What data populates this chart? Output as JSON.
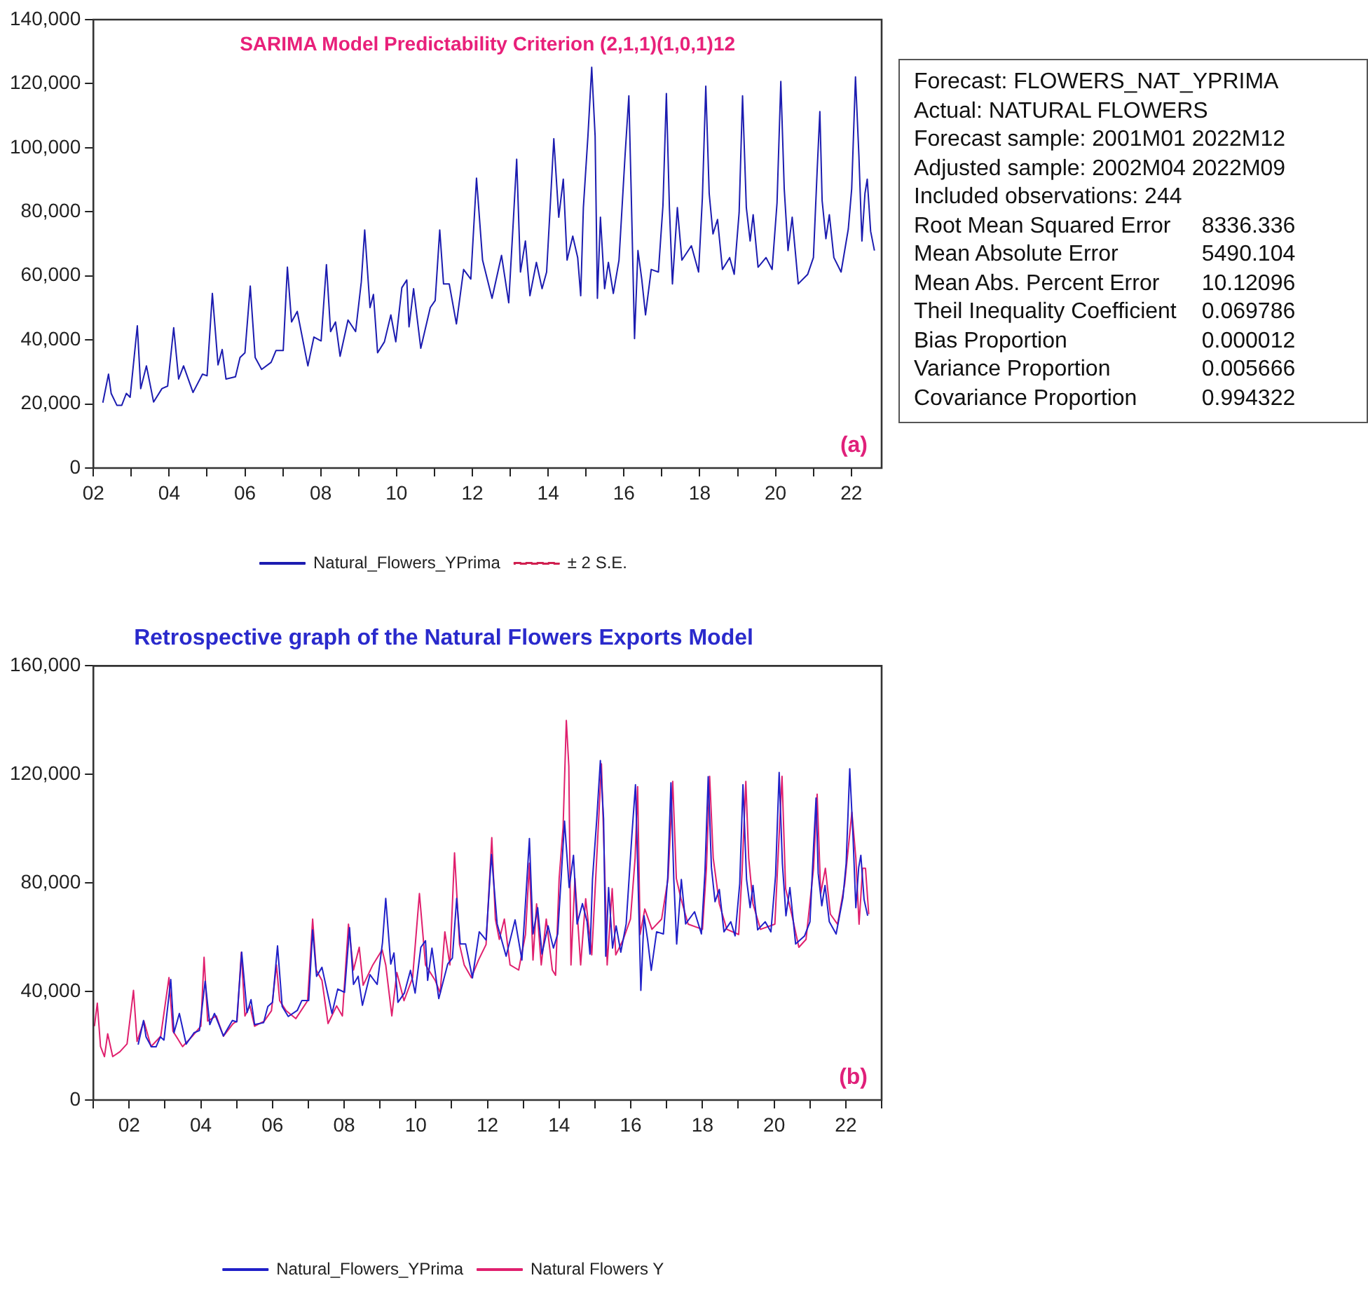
{
  "chart_data": [
    {
      "type": "line",
      "title": "SARIMA Model Predictability Criterion (2,1,1)(1,0,1)12",
      "annotations": [
        "(a)"
      ],
      "xlim": [
        2002,
        2022.8
      ],
      "xticks": [
        {
          "value": 2002,
          "label": "02"
        },
        {
          "value": 2003,
          "label": null
        },
        {
          "value": 2004,
          "label": "04"
        },
        {
          "value": 2005,
          "label": null
        },
        {
          "value": 2006,
          "label": "06"
        },
        {
          "value": 2007,
          "label": null
        },
        {
          "value": 2008,
          "label": "08"
        },
        {
          "value": 2009,
          "label": null
        },
        {
          "value": 2010,
          "label": "10"
        },
        {
          "value": 2011,
          "label": null
        },
        {
          "value": 2012,
          "label": "12"
        },
        {
          "value": 2013,
          "label": null
        },
        {
          "value": 2014,
          "label": "14"
        },
        {
          "value": 2015,
          "label": null
        },
        {
          "value": 2016,
          "label": "16"
        },
        {
          "value": 2017,
          "label": null
        },
        {
          "value": 2018,
          "label": "18"
        },
        {
          "value": 2019,
          "label": null
        },
        {
          "value": 2020,
          "label": "20"
        },
        {
          "value": 2021,
          "label": null
        },
        {
          "value": 2022,
          "label": "22"
        }
      ],
      "ylim": [
        0,
        140000
      ],
      "yticks": [
        {
          "value": 0,
          "label": "0"
        },
        {
          "value": 20000,
          "label": "20,000"
        },
        {
          "value": 40000,
          "label": "40,000"
        },
        {
          "value": 60000,
          "label": "60,000"
        },
        {
          "value": 80000,
          "label": "80,000"
        },
        {
          "value": 100000,
          "label": "100,000"
        },
        {
          "value": 120000,
          "label": "120,000"
        },
        {
          "value": 140000,
          "label": "140,000"
        }
      ],
      "legend": "bottom",
      "series": [
        {
          "name": "Natural_Flowers_YPrima",
          "color": "#1c1cb0",
          "x": [
            2002.25,
            2002.4,
            2002.47,
            2002.62,
            2002.75,
            2002.87,
            2002.97,
            2003.16,
            2003.25,
            2003.4,
            2003.59,
            2003.81,
            2003.96,
            2004.12,
            2004.25,
            2004.38,
            2004.63,
            2004.88,
            2005.0,
            2005.14,
            2005.29,
            2005.4,
            2005.5,
            2005.75,
            2005.87,
            2006.0,
            2006.14,
            2006.27,
            2006.44,
            2006.69,
            2006.82,
            2007.01,
            2007.12,
            2007.23,
            2007.38,
            2007.66,
            2007.82,
            2008.01,
            2008.15,
            2008.26,
            2008.39,
            2008.51,
            2008.72,
            2008.92,
            2009.07,
            2009.16,
            2009.3,
            2009.39,
            2009.5,
            2009.68,
            2009.85,
            2009.98,
            2010.14,
            2010.27,
            2010.33,
            2010.45,
            2010.64,
            2010.89,
            2011.02,
            2011.14,
            2011.24,
            2011.39,
            2011.58,
            2011.77,
            2011.96,
            2012.11,
            2012.27,
            2012.52,
            2012.77,
            2012.96,
            2013.08,
            2013.17,
            2013.27,
            2013.4,
            2013.52,
            2013.69,
            2013.84,
            2013.96,
            2014.06,
            2014.15,
            2014.28,
            2014.4,
            2014.5,
            2014.65,
            2014.78,
            2014.86,
            2014.93,
            2015.05,
            2015.15,
            2015.24,
            2015.3,
            2015.38,
            2015.49,
            2015.59,
            2015.72,
            2015.87,
            2016.03,
            2016.13,
            2016.19,
            2016.28,
            2016.37,
            2016.47,
            2016.57,
            2016.72,
            2016.91,
            2017.03,
            2017.12,
            2017.2,
            2017.28,
            2017.41,
            2017.53,
            2017.78,
            2017.97,
            2018.07,
            2018.16,
            2018.25,
            2018.35,
            2018.47,
            2018.6,
            2018.79,
            2018.91,
            2019.04,
            2019.13,
            2019.23,
            2019.33,
            2019.41,
            2019.54,
            2019.75,
            2019.91,
            2020.04,
            2020.14,
            2020.23,
            2020.33,
            2020.44,
            2020.6,
            2020.85,
            2021.0,
            2021.1,
            2021.17,
            2021.23,
            2021.33,
            2021.42,
            2021.54,
            2021.73,
            2021.92,
            2022.01,
            2022.11,
            2022.2,
            2022.28,
            2022.36,
            2022.42,
            2022.51,
            2022.61
          ],
          "values": [
            20400,
            29300,
            23300,
            19600,
            19600,
            23300,
            22100,
            44400,
            24800,
            31900,
            20600,
            24800,
            25600,
            43800,
            27800,
            31900,
            23600,
            29300,
            28800,
            54500,
            32200,
            37000,
            27800,
            28500,
            34500,
            36000,
            56800,
            34500,
            30800,
            33000,
            36700,
            36700,
            62700,
            45600,
            48900,
            31900,
            40900,
            39700,
            63500,
            42600,
            45600,
            34900,
            46200,
            42600,
            58100,
            74300,
            50100,
            54200,
            36000,
            39400,
            47800,
            39400,
            56300,
            58700,
            44100,
            56000,
            37400,
            50100,
            52300,
            74300,
            57500,
            57500,
            45000,
            62000,
            59000,
            90500,
            64900,
            53000,
            66400,
            51600,
            76800,
            96400,
            61200,
            70900,
            53800,
            64200,
            56000,
            61200,
            82800,
            102800,
            78300,
            90200,
            64900,
            72400,
            65700,
            53800,
            81300,
            103600,
            125100,
            103600,
            53000,
            78300,
            56000,
            64200,
            54500,
            64900,
            97600,
            116200,
            87200,
            40400,
            67900,
            59000,
            47800,
            62000,
            61200,
            82000,
            116900,
            81300,
            57500,
            81300,
            64900,
            69400,
            61200,
            84300,
            119200,
            85700,
            73100,
            77600,
            62000,
            65700,
            60500,
            79800,
            116200,
            81300,
            70900,
            79100,
            62700,
            65700,
            62000,
            82800,
            120700,
            87200,
            67900,
            78300,
            57500,
            60500,
            65700,
            93200,
            111300,
            83500,
            71600,
            79100,
            65700,
            61200,
            74600,
            87200,
            122100,
            97600,
            70900,
            85700,
            90200,
            73900,
            67900
          ]
        },
        {
          "name": "± 2 S.E.",
          "color": "#d02050",
          "line_style": "dashed"
        }
      ]
    },
    {
      "type": "other",
      "annotations": [
        "Forecast: FLOWERS_NAT_YPRIMA",
        "Actual: NATURAL FLOWERS",
        "Forecast sample: 2001M01 2022M12",
        "Adjusted sample: 2002M04 2022M09",
        "Included observations: 244"
      ],
      "categories": [
        "Root Mean Squared Error",
        "Mean Absolute Error",
        "Mean Abs. Percent Error",
        "Theil Inequality Coefficient",
        "Bias Proportion",
        "Variance Proportion",
        "Covariance Proportion"
      ],
      "values": [
        8336.336,
        5490.104,
        10.12096,
        0.069786,
        1.2e-05,
        0.005666,
        0.994322
      ],
      "value_labels": [
        "8336.336",
        "5490.104",
        "10.12096",
        "0.069786",
        "0.000012",
        "0.005666",
        "0.994322"
      ]
    },
    {
      "type": "line",
      "title": "Retrospective graph of the Natural Flowers Exports Model",
      "annotations": [
        "(b)"
      ],
      "xlim": [
        2001,
        2023
      ],
      "xticks": [
        {
          "value": 2001,
          "label": null
        },
        {
          "value": 2002,
          "label": "02"
        },
        {
          "value": 2003,
          "label": null
        },
        {
          "value": 2004,
          "label": "04"
        },
        {
          "value": 2005,
          "label": null
        },
        {
          "value": 2006,
          "label": "06"
        },
        {
          "value": 2007,
          "label": null
        },
        {
          "value": 2008,
          "label": "08"
        },
        {
          "value": 2009,
          "label": null
        },
        {
          "value": 2010,
          "label": "10"
        },
        {
          "value": 2011,
          "label": null
        },
        {
          "value": 2012,
          "label": "12"
        },
        {
          "value": 2013,
          "label": null
        },
        {
          "value": 2014,
          "label": "14"
        },
        {
          "value": 2015,
          "label": null
        },
        {
          "value": 2016,
          "label": "16"
        },
        {
          "value": 2017,
          "label": null
        },
        {
          "value": 2018,
          "label": "18"
        },
        {
          "value": 2019,
          "label": null
        },
        {
          "value": 2020,
          "label": "20"
        },
        {
          "value": 2021,
          "label": null
        },
        {
          "value": 2022,
          "label": "22"
        },
        {
          "value": 2023,
          "label": null
        }
      ],
      "ylim": [
        0,
        160000
      ],
      "yticks": [
        {
          "value": 0,
          "label": "0"
        },
        {
          "value": 40000,
          "label": "40,000"
        },
        {
          "value": 80000,
          "label": "80,000"
        },
        {
          "value": 120000,
          "label": "120,000"
        },
        {
          "value": 160000,
          "label": "160,000"
        }
      ],
      "legend": "bottom",
      "series": [
        {
          "name": "Natural_Flowers_YPrima",
          "color": "#2020c8",
          "x": [
            2002.25,
            2002.4,
            2002.47,
            2002.62,
            2002.75,
            2002.87,
            2002.97,
            2003.16,
            2003.25,
            2003.4,
            2003.59,
            2003.81,
            2003.96,
            2004.12,
            2004.25,
            2004.38,
            2004.63,
            2004.88,
            2005.0,
            2005.14,
            2005.29,
            2005.4,
            2005.5,
            2005.75,
            2005.87,
            2006.0,
            2006.14,
            2006.27,
            2006.44,
            2006.69,
            2006.82,
            2007.01,
            2007.12,
            2007.23,
            2007.38,
            2007.66,
            2007.82,
            2008.01,
            2008.15,
            2008.26,
            2008.39,
            2008.51,
            2008.72,
            2008.92,
            2009.07,
            2009.16,
            2009.3,
            2009.39,
            2009.5,
            2009.68,
            2009.85,
            2009.98,
            2010.14,
            2010.27,
            2010.33,
            2010.45,
            2010.64,
            2010.89,
            2011.02,
            2011.14,
            2011.24,
            2011.39,
            2011.58,
            2011.77,
            2011.96,
            2012.11,
            2012.27,
            2012.52,
            2012.77,
            2012.96,
            2013.08,
            2013.17,
            2013.27,
            2013.4,
            2013.52,
            2013.69,
            2013.84,
            2013.96,
            2014.06,
            2014.15,
            2014.28,
            2014.4,
            2014.5,
            2014.65,
            2014.78,
            2014.86,
            2014.93,
            2015.05,
            2015.15,
            2015.24,
            2015.3,
            2015.38,
            2015.49,
            2015.59,
            2015.72,
            2015.87,
            2016.03,
            2016.13,
            2016.19,
            2016.28,
            2016.37,
            2016.47,
            2016.57,
            2016.72,
            2016.91,
            2017.03,
            2017.12,
            2017.2,
            2017.28,
            2017.41,
            2017.53,
            2017.78,
            2017.97,
            2018.07,
            2018.16,
            2018.25,
            2018.35,
            2018.47,
            2018.6,
            2018.79,
            2018.91,
            2019.04,
            2019.13,
            2019.23,
            2019.33,
            2019.41,
            2019.54,
            2019.75,
            2019.91,
            2020.04,
            2020.14,
            2020.23,
            2020.33,
            2020.44,
            2020.6,
            2020.85,
            2021.0,
            2021.1,
            2021.17,
            2021.23,
            2021.33,
            2021.42,
            2021.54,
            2021.73,
            2021.92,
            2022.01,
            2022.11,
            2022.2,
            2022.28,
            2022.36,
            2022.42,
            2022.51,
            2022.61
          ],
          "values": [
            20400,
            29300,
            23300,
            19600,
            19600,
            23300,
            22100,
            44400,
            24800,
            31900,
            20600,
            24800,
            25600,
            43800,
            27800,
            31900,
            23600,
            29300,
            28800,
            54500,
            32200,
            37000,
            27800,
            28500,
            34500,
            36000,
            56800,
            34500,
            30800,
            33000,
            36700,
            36700,
            62700,
            45600,
            48900,
            31900,
            40900,
            39700,
            63500,
            42600,
            45600,
            34900,
            46200,
            42600,
            58100,
            74300,
            50100,
            54200,
            36000,
            39400,
            47800,
            39400,
            56300,
            58700,
            44100,
            56000,
            37400,
            50100,
            52300,
            74300,
            57500,
            57500,
            45000,
            62000,
            59000,
            90500,
            64900,
            53000,
            66400,
            51600,
            76800,
            96400,
            61200,
            70900,
            53800,
            64200,
            56000,
            61200,
            82800,
            102800,
            78300,
            90200,
            64900,
            72400,
            65700,
            53800,
            81300,
            103600,
            125100,
            103600,
            53000,
            78300,
            56000,
            64200,
            54500,
            64900,
            97600,
            116200,
            87200,
            40400,
            67900,
            59000,
            47800,
            62000,
            61200,
            82000,
            116900,
            81300,
            57500,
            81300,
            64900,
            69400,
            61200,
            84300,
            119200,
            85700,
            73100,
            77600,
            62000,
            65700,
            60500,
            79800,
            116200,
            81300,
            70900,
            79100,
            62700,
            65700,
            62000,
            82800,
            120700,
            87200,
            67900,
            78300,
            57500,
            60500,
            65700,
            93200,
            111300,
            83500,
            71600,
            79100,
            65700,
            61200,
            74600,
            87200,
            122100,
            97600,
            70900,
            85700,
            90200,
            73900,
            67900
          ]
        },
        {
          "name": "Natural Flowers Y",
          "color": "#e0206e",
          "x": [
            2001.03,
            2001.11,
            2001.2,
            2001.31,
            2001.4,
            2001.54,
            2001.74,
            2001.94,
            2002.12,
            2002.22,
            2002.41,
            2002.61,
            2002.88,
            2003.11,
            2003.22,
            2003.49,
            2003.76,
            2004.0,
            2004.09,
            2004.19,
            2004.43,
            2004.63,
            2004.9,
            2005.01,
            2005.13,
            2005.23,
            2005.37,
            2005.5,
            2005.77,
            2005.97,
            2006.11,
            2006.2,
            2006.38,
            2006.65,
            2006.98,
            2007.12,
            2007.22,
            2007.38,
            2007.55,
            2007.79,
            2007.95,
            2008.12,
            2008.26,
            2008.42,
            2008.53,
            2008.8,
            2009.06,
            2009.16,
            2009.33,
            2009.47,
            2009.67,
            2009.91,
            2010.1,
            2010.27,
            2010.54,
            2010.68,
            2010.81,
            2010.95,
            2011.08,
            2011.22,
            2011.35,
            2011.55,
            2011.75,
            2011.96,
            2012.12,
            2012.22,
            2012.33,
            2012.47,
            2012.63,
            2012.87,
            2013.06,
            2013.17,
            2013.27,
            2013.37,
            2013.5,
            2013.64,
            2013.81,
            2013.9,
            2014.0,
            2014.11,
            2014.2,
            2014.27,
            2014.33,
            2014.44,
            2014.6,
            2014.74,
            2014.91,
            2015.02,
            2015.18,
            2015.29,
            2015.34,
            2015.48,
            2015.58,
            2015.79,
            2015.99,
            2016.12,
            2016.19,
            2016.26,
            2016.39,
            2016.59,
            2016.86,
            2017.04,
            2017.17,
            2017.27,
            2017.4,
            2017.6,
            2018.0,
            2018.11,
            2018.2,
            2018.3,
            2018.47,
            2018.68,
            2019.01,
            2019.11,
            2019.21,
            2019.29,
            2019.41,
            2019.62,
            2020.02,
            2020.15,
            2020.22,
            2020.32,
            2020.49,
            2020.69,
            2020.89,
            2021.1,
            2021.2,
            2021.3,
            2021.43,
            2021.57,
            2021.77,
            2021.97,
            2022.17,
            2022.28,
            2022.37,
            2022.47,
            2022.55,
            2022.64
          ],
          "values": [
            27200,
            35700,
            19700,
            16000,
            24400,
            16000,
            17800,
            20700,
            40400,
            21600,
            29100,
            19700,
            23500,
            45100,
            25400,
            19700,
            23500,
            27200,
            52600,
            29100,
            31000,
            23500,
            28200,
            29100,
            54500,
            31000,
            34700,
            27200,
            29100,
            32900,
            49800,
            36600,
            32900,
            30000,
            36600,
            66700,
            47900,
            44100,
            28200,
            34700,
            31000,
            64800,
            47900,
            56300,
            42300,
            49800,
            55400,
            49800,
            31000,
            47000,
            36600,
            45100,
            76100,
            49800,
            44100,
            39400,
            62000,
            49800,
            91100,
            57300,
            49800,
            45100,
            51600,
            57300,
            96700,
            66700,
            59200,
            66700,
            49800,
            47900,
            61000,
            87300,
            51600,
            72300,
            49800,
            66700,
            47900,
            46000,
            81700,
            100500,
            139900,
            123000,
            49800,
            81700,
            49800,
            74200,
            53500,
            81700,
            123900,
            76100,
            49800,
            77900,
            53500,
            59200,
            66700,
            89200,
            115500,
            61000,
            70400,
            62900,
            66700,
            81700,
            117400,
            81700,
            74200,
            64800,
            62900,
            85400,
            119300,
            89200,
            72300,
            62900,
            61000,
            85400,
            117400,
            89200,
            72300,
            62900,
            64800,
            100500,
            119300,
            77900,
            68500,
            56300,
            59200,
            85400,
            112700,
            76100,
            85400,
            68500,
            64800,
            79800,
            106100,
            89200,
            64800,
            85400,
            85400,
            68500
          ]
        }
      ]
    }
  ]
}
